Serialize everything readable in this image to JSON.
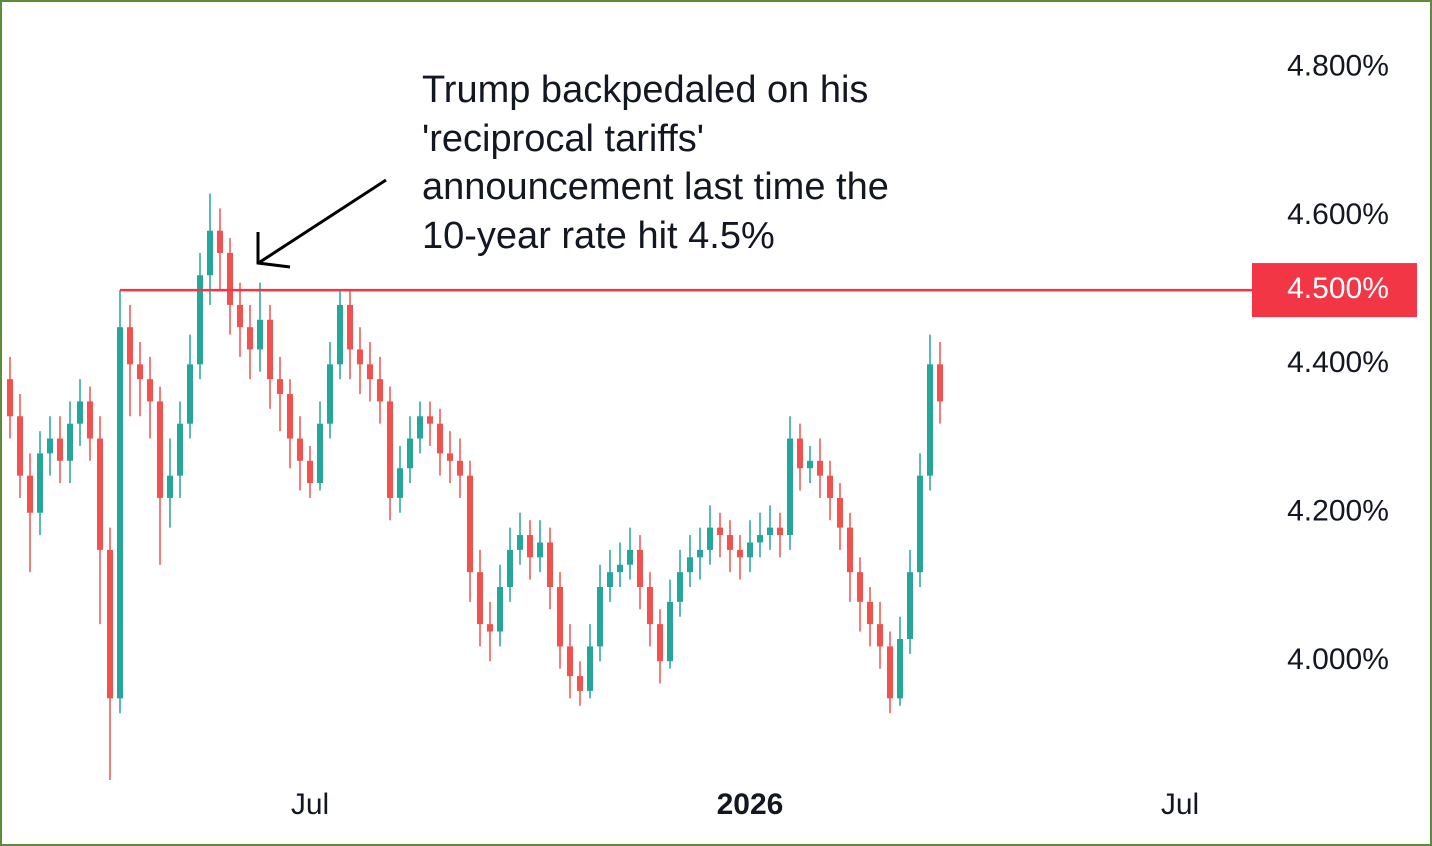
{
  "chart_data": {
    "type": "candlestick",
    "annotation": [
      "Trump backpedaled on his",
      "'reciprocal tariffs'",
      "announcement last time the",
      "10-year rate hit 4.5%"
    ],
    "open": [
      4.38,
      4.33,
      4.25,
      4.2,
      4.28,
      4.3,
      4.27,
      4.32,
      4.35,
      4.3,
      4.15,
      3.95,
      4.45,
      4.4,
      4.38,
      4.35,
      4.22,
      4.25,
      4.32,
      4.4,
      4.52,
      4.58,
      4.55,
      4.48,
      4.45,
      4.42,
      4.46,
      4.38,
      4.36,
      4.3,
      4.27,
      4.24,
      4.32,
      4.4,
      4.48,
      4.42,
      4.4,
      4.38,
      4.35,
      4.22,
      4.26,
      4.3,
      4.33,
      4.32,
      4.28,
      4.27,
      4.25,
      4.12,
      4.05,
      4.04,
      4.1,
      4.15,
      4.17,
      4.14,
      4.16,
      4.1,
      4.02,
      3.98,
      3.96,
      4.02,
      4.1,
      4.12,
      4.13,
      4.15,
      4.1,
      4.05,
      4.0,
      4.08,
      4.12,
      4.14,
      4.15,
      4.18,
      4.17,
      4.15,
      4.14,
      4.16,
      4.17,
      4.18,
      4.17,
      4.3,
      4.26,
      4.27,
      4.25,
      4.22,
      4.18,
      4.12,
      4.08,
      4.05,
      4.02,
      3.95,
      4.03,
      4.12,
      4.25,
      4.4
    ],
    "high": [
      4.41,
      4.36,
      4.28,
      4.31,
      4.33,
      4.33,
      4.35,
      4.38,
      4.37,
      4.33,
      4.18,
      4.5,
      4.48,
      4.43,
      4.41,
      4.37,
      4.3,
      4.35,
      4.44,
      4.55,
      4.63,
      4.61,
      4.57,
      4.51,
      4.48,
      4.51,
      4.48,
      4.41,
      4.38,
      4.33,
      4.29,
      4.35,
      4.43,
      4.5,
      4.5,
      4.45,
      4.43,
      4.41,
      4.37,
      4.29,
      4.33,
      4.35,
      4.35,
      4.34,
      4.31,
      4.3,
      4.27,
      4.15,
      4.08,
      4.13,
      4.18,
      4.2,
      4.19,
      4.19,
      4.18,
      4.12,
      4.05,
      4.0,
      4.05,
      4.13,
      4.15,
      4.16,
      4.18,
      4.17,
      4.12,
      4.07,
      4.11,
      4.15,
      4.17,
      4.18,
      4.21,
      4.2,
      4.19,
      4.17,
      4.19,
      4.2,
      4.21,
      4.2,
      4.33,
      4.32,
      4.29,
      4.3,
      4.27,
      4.24,
      4.2,
      4.14,
      4.1,
      4.08,
      4.04,
      4.06,
      4.15,
      4.28,
      4.44,
      4.43
    ],
    "low": [
      4.3,
      4.22,
      4.12,
      4.17,
      4.25,
      4.24,
      4.24,
      4.29,
      4.27,
      4.05,
      3.84,
      3.93,
      4.33,
      4.33,
      4.3,
      4.13,
      4.18,
      4.22,
      4.3,
      4.38,
      4.48,
      4.5,
      4.44,
      4.41,
      4.38,
      4.39,
      4.34,
      4.31,
      4.26,
      4.23,
      4.22,
      4.23,
      4.3,
      4.38,
      4.38,
      4.36,
      4.35,
      4.32,
      4.19,
      4.2,
      4.24,
      4.28,
      4.29,
      4.25,
      4.24,
      4.22,
      4.08,
      4.02,
      4.0,
      4.02,
      4.08,
      4.13,
      4.11,
      4.12,
      4.07,
      3.99,
      3.95,
      3.94,
      3.95,
      4.0,
      4.08,
      4.1,
      4.11,
      4.07,
      4.02,
      3.97,
      3.99,
      4.06,
      4.1,
      4.11,
      4.13,
      4.14,
      4.12,
      4.11,
      4.12,
      4.14,
      4.15,
      4.14,
      4.15,
      4.23,
      4.24,
      4.22,
      4.19,
      4.15,
      4.08,
      4.04,
      4.02,
      3.99,
      3.93,
      3.94,
      4.01,
      4.1,
      4.23,
      4.32
    ],
    "close": [
      4.33,
      4.25,
      4.2,
      4.28,
      4.3,
      4.27,
      4.32,
      4.35,
      4.3,
      4.15,
      3.95,
      4.45,
      4.4,
      4.38,
      4.35,
      4.22,
      4.25,
      4.32,
      4.4,
      4.52,
      4.58,
      4.55,
      4.48,
      4.45,
      4.42,
      4.46,
      4.38,
      4.36,
      4.3,
      4.27,
      4.24,
      4.32,
      4.4,
      4.48,
      4.42,
      4.4,
      4.38,
      4.35,
      4.22,
      4.26,
      4.3,
      4.33,
      4.32,
      4.28,
      4.27,
      4.25,
      4.12,
      4.05,
      4.04,
      4.1,
      4.15,
      4.17,
      4.14,
      4.16,
      4.1,
      4.02,
      3.98,
      3.96,
      4.02,
      4.1,
      4.12,
      4.13,
      4.15,
      4.1,
      4.05,
      4.0,
      4.08,
      4.12,
      4.14,
      4.15,
      4.18,
      4.17,
      4.15,
      4.14,
      4.16,
      4.17,
      4.18,
      4.17,
      4.3,
      4.26,
      4.27,
      4.25,
      4.22,
      4.18,
      4.12,
      4.08,
      4.05,
      4.02,
      3.95,
      4.03,
      4.12,
      4.25,
      4.4,
      4.35
    ],
    "up_color": "#26a69a",
    "down_color": "#ef5350",
    "hline": {
      "value": 4.5,
      "label": "4.500%",
      "color": "#f23645"
    },
    "xlim": [
      -1,
      124
    ],
    "xticks": [
      {
        "value": 30,
        "label": "Jul"
      },
      {
        "value": 74,
        "label": "2026"
      },
      {
        "value": 117,
        "label": "Jul"
      }
    ],
    "ylim": [
      3.84,
      4.88
    ],
    "yticks": [
      {
        "value": 4.0,
        "label": "4.000%"
      },
      {
        "value": 4.2,
        "label": "4.200%"
      },
      {
        "value": 4.4,
        "label": "4.400%"
      },
      {
        "value": 4.6,
        "label": "4.600%"
      },
      {
        "value": 4.8,
        "label": "4.800%"
      }
    ]
  }
}
